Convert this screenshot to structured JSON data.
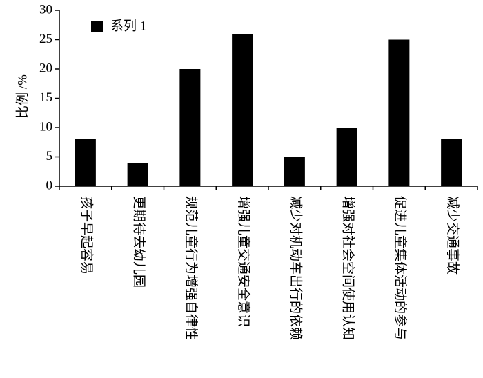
{
  "chart_data": {
    "type": "bar",
    "y_label": "比例 /%",
    "categories": [
      "孩子早起容易",
      "更期待去幼儿园",
      "规范儿童行为增强自律性",
      "增强儿童交通安全意识",
      "减少对机动车出行的依赖",
      "增强对社会空间使用认知",
      "促进儿童集体活动的参与",
      "减少交通事故"
    ],
    "series": [
      {
        "name": "系列 1",
        "color": "#000000",
        "values": [
          8,
          4,
          20,
          26,
          5,
          10,
          25,
          8
        ]
      }
    ],
    "ylim": [
      0,
      30
    ],
    "yticks": [
      0,
      5,
      10,
      15,
      20,
      25,
      30
    ]
  }
}
